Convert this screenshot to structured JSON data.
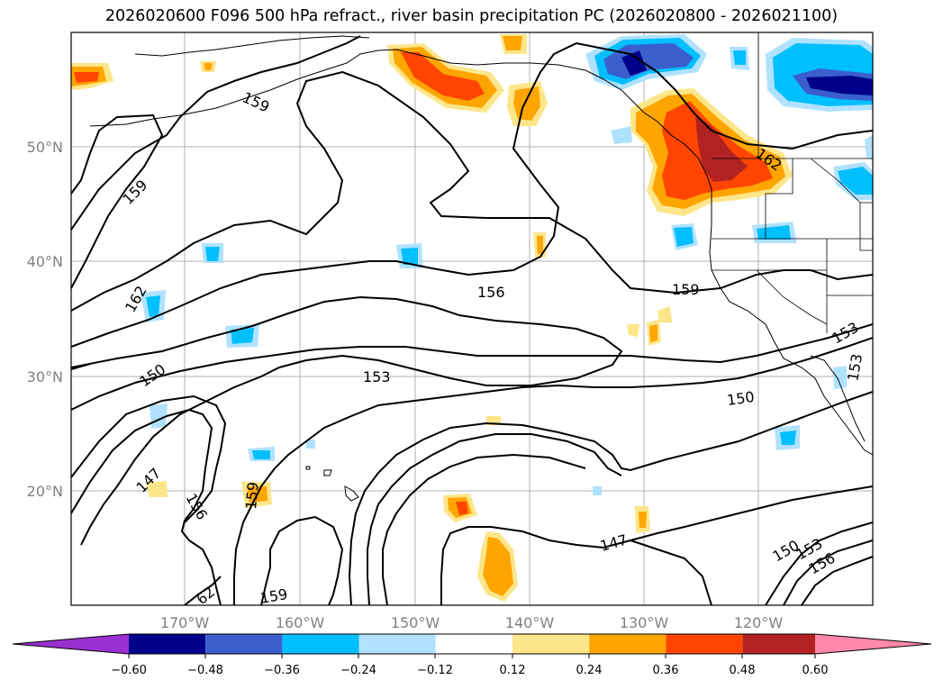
{
  "title": "2026020600 F096 500 hPa refract., river basin precipitation PC (2026020800 - 2026021100)",
  "lat_labels": [
    "50°N",
    "40°N",
    "30°N",
    "20°N"
  ],
  "lon_labels": [
    "170°W",
    "160°W",
    "150°W",
    "140°W",
    "130°W",
    "120°W"
  ],
  "contour_labels": [
    "159",
    "159",
    "162",
    "150",
    "147",
    "156",
    "159",
    "62",
    "159",
    "153",
    "156",
    "159",
    "162",
    "150",
    "147",
    "153",
    "153",
    "150",
    "153",
    "156"
  ],
  "colorbar": {
    "ticks": [
      "−0.60",
      "−0.48",
      "−0.36",
      "−0.24",
      "−0.12",
      "0.12",
      "0.24",
      "0.36",
      "0.48",
      "0.60"
    ],
    "colors": [
      "#9b30d0",
      "#00008b",
      "#3a5fcd",
      "#00bfff",
      "#b0e2ff",
      "#ffffff",
      "#fde68a",
      "#ffa500",
      "#ff4500",
      "#b22222",
      "#ff88aa"
    ]
  }
}
